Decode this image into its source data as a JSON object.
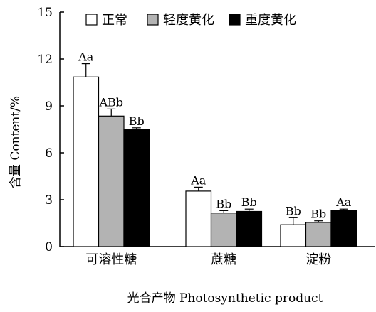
{
  "chart_data": {
    "type": "bar",
    "title": "",
    "xlabel": "光合产物 Photosynthetic product",
    "ylabel": "含量 Content/%",
    "ylim": [
      0,
      15
    ],
    "yticks": [
      0,
      3,
      6,
      9,
      12,
      15
    ],
    "grid": false,
    "legend_position": "top",
    "categories": [
      "可溶性糖",
      "蔗糖",
      "淀粉"
    ],
    "series": [
      {
        "name": "正常",
        "color": "#ffffff",
        "values": [
          10.85,
          3.55,
          1.4
        ],
        "errors": [
          0.85,
          0.25,
          0.45
        ],
        "labels": [
          "Aa",
          "Aa",
          "Bb"
        ]
      },
      {
        "name": "轻度黄化",
        "color": "#b3b3b3",
        "values": [
          8.35,
          2.15,
          1.55
        ],
        "errors": [
          0.45,
          0.15,
          0.1
        ],
        "labels": [
          "ABb",
          "Bb",
          "Bb"
        ]
      },
      {
        "name": "重度黄化",
        "color": "#000000",
        "values": [
          7.5,
          2.25,
          2.3
        ],
        "errors": [
          0.1,
          0.15,
          0.1
        ],
        "labels": [
          "Bb",
          "Bb",
          "Aa"
        ]
      }
    ]
  }
}
